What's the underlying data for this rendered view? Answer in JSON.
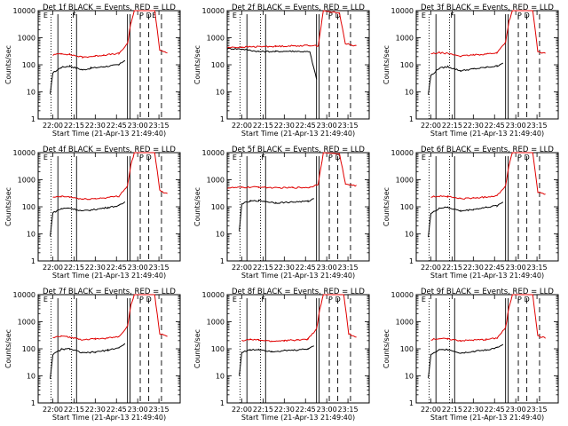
{
  "chart_data": [
    {
      "type": "line",
      "title": "Det 1f BLACK = Events, RED = LLD",
      "xlabel": "Start Time (21-Apr-13 21:49:40)",
      "ylabel": "Counts/sec",
      "xticks": [
        "22:00",
        "22:15",
        "22:30",
        "22:45",
        "23:00",
        "23:15"
      ],
      "yticks": [
        "1",
        "10",
        "100",
        "1000",
        "10000"
      ],
      "ylim": [
        1,
        10000
      ],
      "yscale": "log",
      "markers": [
        "E",
        "F",
        "P",
        "D",
        "E"
      ],
      "series": [
        {
          "color": "#000000",
          "points": [
            [
              21.97,
              8
            ],
            [
              22.0,
              50
            ],
            [
              22.1,
              80
            ],
            [
              22.2,
              90
            ],
            [
              22.35,
              65
            ],
            [
              22.45,
              75
            ],
            [
              22.6,
              85
            ],
            [
              22.78,
              100
            ],
            [
              22.85,
              150
            ]
          ]
        },
        {
          "color": "#e00000",
          "points": [
            [
              22.0,
              230
            ],
            [
              22.1,
              260
            ],
            [
              22.2,
              240
            ],
            [
              22.35,
              190
            ],
            [
              22.5,
              210
            ],
            [
              22.6,
              230
            ],
            [
              22.78,
              260
            ],
            [
              22.88,
              600
            ],
            [
              22.92,
              3500
            ],
            [
              22.96,
              10000
            ],
            [
              23.2,
              10000
            ],
            [
              23.26,
              350
            ],
            [
              23.35,
              280
            ]
          ]
        }
      ]
    },
    {
      "type": "line",
      "title": "Det 2f BLACK = Events, RED = LLD",
      "xlabel": "Start Time (21-Apr-13 21:49:40)",
      "ylabel": "Counts/sec",
      "xticks": [
        "22:00",
        "22:15",
        "22:30",
        "22:45",
        "23:00",
        "23:15"
      ],
      "yticks": [
        "1",
        "10",
        "100",
        "1000",
        "10000"
      ],
      "ylim": [
        1,
        10000
      ],
      "yscale": "log",
      "markers": [
        "P",
        "D",
        "E"
      ],
      "series": [
        {
          "color": "#000000",
          "points": [
            [
              21.83,
              400
            ],
            [
              22.0,
              380
            ],
            [
              22.2,
              310
            ],
            [
              22.4,
              310
            ],
            [
              22.6,
              320
            ],
            [
              22.8,
              300
            ],
            [
              22.88,
              30
            ]
          ]
        },
        {
          "color": "#e00000",
          "points": [
            [
              21.83,
              430
            ],
            [
              22.0,
              450
            ],
            [
              22.2,
              470
            ],
            [
              22.4,
              480
            ],
            [
              22.6,
              500
            ],
            [
              22.8,
              520
            ],
            [
              22.9,
              500
            ],
            [
              22.96,
              10000
            ],
            [
              23.15,
              8000
            ],
            [
              23.22,
              600
            ],
            [
              23.35,
              500
            ]
          ]
        }
      ]
    },
    {
      "type": "line",
      "title": "Det 3f BLACK = Events, RED = LLD",
      "xlabel": "Start Time (21-Apr-13 21:49:40)",
      "ylabel": "Counts/sec",
      "xticks": [
        "22:00",
        "22:15",
        "22:30",
        "22:45",
        "23:00",
        "23:15"
      ],
      "yticks": [
        "1",
        "10",
        "100",
        "1000",
        "10000"
      ],
      "ylim": [
        1,
        10000
      ],
      "yscale": "log",
      "markers": [
        "F",
        "P",
        "D",
        "E"
      ],
      "series": [
        {
          "color": "#000000",
          "points": [
            [
              21.97,
              8
            ],
            [
              22.0,
              40
            ],
            [
              22.1,
              75
            ],
            [
              22.2,
              85
            ],
            [
              22.35,
              60
            ],
            [
              22.5,
              70
            ],
            [
              22.65,
              80
            ],
            [
              22.78,
              90
            ],
            [
              22.85,
              120
            ]
          ]
        },
        {
          "color": "#e00000",
          "points": [
            [
              22.0,
              250
            ],
            [
              22.1,
              280
            ],
            [
              22.2,
              260
            ],
            [
              22.35,
              210
            ],
            [
              22.5,
              230
            ],
            [
              22.65,
              250
            ],
            [
              22.78,
              280
            ],
            [
              22.88,
              700
            ],
            [
              22.92,
              4000
            ],
            [
              22.96,
              10000
            ],
            [
              23.2,
              10000
            ],
            [
              23.26,
              300
            ],
            [
              23.35,
              260
            ]
          ]
        }
      ]
    },
    {
      "type": "line",
      "title": "Det 4f BLACK = Events, RED = LLD",
      "xlabel": "Start Time (21-Apr-13 21:49:40)",
      "ylabel": "Counts/sec",
      "xticks": [
        "22:00",
        "22:15",
        "22:30",
        "22:45",
        "23:00",
        "23:15"
      ],
      "yticks": [
        "1",
        "10",
        "100",
        "1000",
        "10000"
      ],
      "ylim": [
        1,
        10000
      ],
      "yscale": "log",
      "markers": [
        "P",
        "D",
        "E"
      ],
      "series": [
        {
          "color": "#000000",
          "points": [
            [
              21.97,
              8
            ],
            [
              22.0,
              60
            ],
            [
              22.1,
              85
            ],
            [
              22.2,
              90
            ],
            [
              22.35,
              70
            ],
            [
              22.5,
              80
            ],
            [
              22.65,
              95
            ],
            [
              22.78,
              110
            ],
            [
              22.85,
              150
            ]
          ]
        },
        {
          "color": "#e00000",
          "points": [
            [
              22.0,
              220
            ],
            [
              22.1,
              240
            ],
            [
              22.2,
              230
            ],
            [
              22.35,
              190
            ],
            [
              22.5,
              200
            ],
            [
              22.65,
              220
            ],
            [
              22.78,
              250
            ],
            [
              22.88,
              600
            ],
            [
              22.92,
              3500
            ],
            [
              22.96,
              10000
            ],
            [
              23.2,
              10000
            ],
            [
              23.26,
              400
            ],
            [
              23.35,
              300
            ]
          ]
        }
      ]
    },
    {
      "type": "line",
      "title": "Det 5f BLACK = Events, RED = LLD",
      "xlabel": "Start Time (21-Apr-13 21:49:40)",
      "ylabel": "Counts/sec",
      "xticks": [
        "22:00",
        "22:15",
        "22:30",
        "22:45",
        "23:00",
        "23:15"
      ],
      "yticks": [
        "1",
        "10",
        "100",
        "1000",
        "10000"
      ],
      "ylim": [
        1,
        10000
      ],
      "yscale": "log",
      "markers": [
        "F",
        "P",
        "D",
        "E"
      ],
      "series": [
        {
          "color": "#000000",
          "points": [
            [
              21.97,
              12
            ],
            [
              22.0,
              130
            ],
            [
              22.1,
              160
            ],
            [
              22.2,
              170
            ],
            [
              22.4,
              140
            ],
            [
              22.6,
              150
            ],
            [
              22.78,
              160
            ],
            [
              22.85,
              200
            ]
          ]
        },
        {
          "color": "#e00000",
          "points": [
            [
              21.83,
              500
            ],
            [
              22.0,
              520
            ],
            [
              22.2,
              540
            ],
            [
              22.4,
              500
            ],
            [
              22.6,
              510
            ],
            [
              22.8,
              520
            ],
            [
              22.9,
              700
            ],
            [
              22.96,
              10000
            ],
            [
              23.15,
              9000
            ],
            [
              23.22,
              700
            ],
            [
              23.35,
              600
            ]
          ]
        }
      ]
    },
    {
      "type": "line",
      "title": "Det 6f BLACK = Events, RED = LLD",
      "xlabel": "Start Time (21-Apr-13 21:49:40)",
      "ylabel": "Counts/sec",
      "xticks": [
        "22:00",
        "22:15",
        "22:30",
        "22:45",
        "23:00",
        "23:15"
      ],
      "yticks": [
        "1",
        "10",
        "100",
        "1000",
        "10000"
      ],
      "ylim": [
        1,
        10000
      ],
      "yscale": "log",
      "markers": [
        "P",
        "D",
        "E"
      ],
      "series": [
        {
          "color": "#000000",
          "points": [
            [
              21.97,
              8
            ],
            [
              22.0,
              55
            ],
            [
              22.1,
              90
            ],
            [
              22.2,
              95
            ],
            [
              22.35,
              70
            ],
            [
              22.5,
              80
            ],
            [
              22.65,
              95
            ],
            [
              22.78,
              110
            ],
            [
              22.85,
              150
            ]
          ]
        },
        {
          "color": "#e00000",
          "points": [
            [
              22.0,
              230
            ],
            [
              22.1,
              250
            ],
            [
              22.2,
              240
            ],
            [
              22.35,
              200
            ],
            [
              22.5,
              210
            ],
            [
              22.65,
              230
            ],
            [
              22.78,
              260
            ],
            [
              22.88,
              600
            ],
            [
              22.92,
              3500
            ],
            [
              22.96,
              10000
            ],
            [
              23.2,
              10000
            ],
            [
              23.26,
              350
            ],
            [
              23.35,
              280
            ]
          ]
        }
      ]
    },
    {
      "type": "line",
      "title": "Det 7f BLACK = Events, RED = LLD",
      "xlabel": "Start Time (21-Apr-13 21:49:40)",
      "ylabel": "Counts/sec",
      "xticks": [
        "22:00",
        "22:15",
        "22:30",
        "22:45",
        "23:00",
        "23:15"
      ],
      "yticks": [
        "1",
        "10",
        "100",
        "1000",
        "10000"
      ],
      "ylim": [
        1,
        10000
      ],
      "yscale": "log",
      "markers": [
        "P",
        "D",
        "E"
      ],
      "series": [
        {
          "color": "#000000",
          "points": [
            [
              21.97,
              8
            ],
            [
              22.0,
              60
            ],
            [
              22.1,
              95
            ],
            [
              22.2,
              100
            ],
            [
              22.35,
              70
            ],
            [
              22.5,
              75
            ],
            [
              22.65,
              90
            ],
            [
              22.78,
              110
            ],
            [
              22.85,
              150
            ]
          ]
        },
        {
          "color": "#e00000",
          "points": [
            [
              22.0,
              260
            ],
            [
              22.1,
              290
            ],
            [
              22.2,
              270
            ],
            [
              22.35,
              220
            ],
            [
              22.5,
              230
            ],
            [
              22.65,
              250
            ],
            [
              22.78,
              280
            ],
            [
              22.88,
              700
            ],
            [
              22.92,
              4000
            ],
            [
              22.96,
              10000
            ],
            [
              23.2,
              10000
            ],
            [
              23.26,
              350
            ],
            [
              23.35,
              300
            ]
          ]
        }
      ]
    },
    {
      "type": "line",
      "title": "Det 8f BLACK = Events, RED = LLD",
      "xlabel": "Start Time (21-Apr-13 21:49:40)",
      "ylabel": "Counts/sec",
      "xticks": [
        "22:00",
        "22:15",
        "22:30",
        "22:45",
        "23:00",
        "23:15"
      ],
      "yticks": [
        "1",
        "10",
        "100",
        "1000",
        "10000"
      ],
      "ylim": [
        1,
        10000
      ],
      "yscale": "log",
      "markers": [
        "F",
        "P",
        "D",
        "E"
      ],
      "series": [
        {
          "color": "#000000",
          "points": [
            [
              21.97,
              10
            ],
            [
              22.0,
              75
            ],
            [
              22.1,
              90
            ],
            [
              22.2,
              95
            ],
            [
              22.35,
              80
            ],
            [
              22.5,
              85
            ],
            [
              22.65,
              90
            ],
            [
              22.78,
              100
            ],
            [
              22.85,
              130
            ]
          ]
        },
        {
          "color": "#e00000",
          "points": [
            [
              22.0,
              200
            ],
            [
              22.1,
              220
            ],
            [
              22.2,
              210
            ],
            [
              22.35,
              190
            ],
            [
              22.5,
              200
            ],
            [
              22.65,
              210
            ],
            [
              22.78,
              230
            ],
            [
              22.88,
              550
            ],
            [
              22.92,
              3000
            ],
            [
              22.96,
              10000
            ],
            [
              23.2,
              10000
            ],
            [
              23.26,
              350
            ],
            [
              23.35,
              280
            ]
          ]
        }
      ]
    },
    {
      "type": "line",
      "title": "Det 9f BLACK = Events, RED = LLD",
      "xlabel": "Start Time (21-Apr-13 21:49:40)",
      "ylabel": "Counts/sec",
      "xticks": [
        "22:00",
        "22:15",
        "22:30",
        "22:45",
        "23:00",
        "23:15"
      ],
      "yticks": [
        "1",
        "10",
        "100",
        "1000",
        "10000"
      ],
      "ylim": [
        1,
        10000
      ],
      "yscale": "log",
      "markers": [
        "P",
        "D",
        "E"
      ],
      "series": [
        {
          "color": "#000000",
          "points": [
            [
              21.97,
              8
            ],
            [
              22.0,
              60
            ],
            [
              22.1,
              90
            ],
            [
              22.2,
              95
            ],
            [
              22.35,
              70
            ],
            [
              22.5,
              80
            ],
            [
              22.65,
              90
            ],
            [
              22.78,
              110
            ],
            [
              22.85,
              140
            ]
          ]
        },
        {
          "color": "#e00000",
          "points": [
            [
              22.0,
              220
            ],
            [
              22.1,
              240
            ],
            [
              22.2,
              230
            ],
            [
              22.35,
              200
            ],
            [
              22.5,
              210
            ],
            [
              22.65,
              220
            ],
            [
              22.78,
              250
            ],
            [
              22.88,
              600
            ],
            [
              22.92,
              3500
            ],
            [
              22.96,
              10000
            ],
            [
              23.2,
              10000
            ],
            [
              23.26,
              300
            ],
            [
              23.35,
              250
            ]
          ]
        }
      ]
    }
  ]
}
